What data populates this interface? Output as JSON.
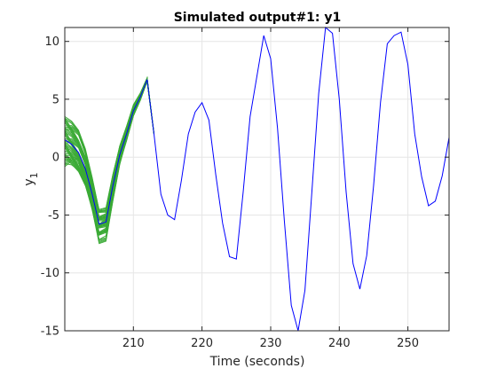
{
  "chart_data": {
    "type": "line",
    "title": "Simulated output#1: y1",
    "xlabel": "Time (seconds)",
    "ylabel": "y",
    "ylabel_subscript": "1",
    "xlim": [
      200,
      256
    ],
    "ylim": [
      -15,
      11.2
    ],
    "xticks": [
      210,
      220,
      230,
      240,
      250
    ],
    "yticks": [
      -15,
      -10,
      -5,
      0,
      5,
      10
    ],
    "grid": true,
    "colors": {
      "simulated": "#0000ff",
      "ensemble": "#3aaa35",
      "grid": "#e6e6e6",
      "axes": "#262626"
    },
    "series": [
      {
        "role": "simulated",
        "x": [
          200,
          201,
          202,
          203,
          204,
          205,
          206,
          207,
          208,
          209,
          210,
          211,
          212,
          213,
          214,
          215,
          216,
          217,
          218,
          219,
          220,
          221,
          222,
          223,
          224,
          225,
          226,
          227,
          228,
          229,
          230,
          231,
          232,
          233,
          234,
          235,
          236,
          237,
          238,
          239,
          240,
          241,
          242,
          243,
          244,
          245,
          246,
          247,
          248,
          249,
          250,
          251,
          252,
          253,
          254,
          255,
          256
        ],
        "y": [
          1.5,
          1.1,
          0.4,
          -1.0,
          -3.2,
          -5.8,
          -5.6,
          -2.5,
          0.2,
          2.0,
          4.0,
          5.2,
          6.7,
          2.0,
          -3.2,
          -5.0,
          -5.4,
          -2.0,
          2.0,
          3.9,
          4.7,
          3.2,
          -1.5,
          -5.7,
          -8.6,
          -8.8,
          -3.0,
          3.5,
          7.0,
          10.5,
          8.5,
          2.5,
          -5.5,
          -12.8,
          -15.0,
          -11.5,
          -3.0,
          5.5,
          11.2,
          10.7,
          5.0,
          -3.0,
          -9.2,
          -11.4,
          -8.5,
          -2.5,
          4.7,
          9.8,
          10.5,
          10.8,
          8.0,
          2.0,
          -1.7,
          -4.2,
          -3.8,
          -1.6,
          1.7
        ]
      }
    ]
  }
}
